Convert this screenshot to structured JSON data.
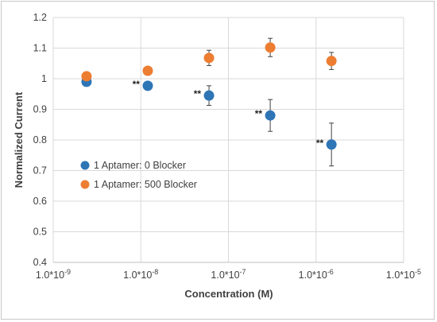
{
  "chart_data": {
    "type": "scatter",
    "xlabel": "Concentration (M)",
    "ylabel": "Normalized Current",
    "x_scale": "log",
    "xlim": [
      1e-09,
      1e-05
    ],
    "ylim": [
      0.4,
      1.2
    ],
    "grid": "on",
    "legend_position": "center-left",
    "x_ticks": [
      {
        "value": 1e-09,
        "label": "1.0*10",
        "exp": "-9"
      },
      {
        "value": 1e-08,
        "label": "1.0*10",
        "exp": "-8"
      },
      {
        "value": 1e-07,
        "label": "1.0*10",
        "exp": "-7"
      },
      {
        "value": 1e-06,
        "label": "1.0*10",
        "exp": "-6"
      },
      {
        "value": 1e-05,
        "label": "1.0*10",
        "exp": "-5"
      }
    ],
    "y_ticks": [
      "0.4",
      "0.5",
      "0.6",
      "0.7",
      "0.8",
      "0.9",
      "1",
      "1.1",
      "1.2"
    ],
    "series": [
      {
        "name": "1 Aptamer: 0 Blocker",
        "color": "#2e75b6",
        "points": [
          {
            "x": 2.4e-09,
            "y": 0.99,
            "err": 0
          },
          {
            "x": 1.2e-08,
            "y": 0.977,
            "err": 0
          },
          {
            "x": 6e-08,
            "y": 0.945,
            "err": 0.032
          },
          {
            "x": 3e-07,
            "y": 0.88,
            "err": 0.052
          },
          {
            "x": 1.5e-06,
            "y": 0.785,
            "err": 0.07
          }
        ]
      },
      {
        "name": "1 Aptamer: 500 Blocker",
        "color": "#ed7d31",
        "points": [
          {
            "x": 2.4e-09,
            "y": 1.008,
            "err": 0
          },
          {
            "x": 1.2e-08,
            "y": 1.026,
            "err": 0
          },
          {
            "x": 6e-08,
            "y": 1.068,
            "err": 0.025
          },
          {
            "x": 3e-07,
            "y": 1.102,
            "err": 0.03
          },
          {
            "x": 1.5e-06,
            "y": 1.058,
            "err": 0.028
          }
        ]
      }
    ],
    "annotations": [
      {
        "text": "**",
        "x": 1.2e-08,
        "y": 0.977
      },
      {
        "text": "**",
        "x": 6e-08,
        "y": 0.945
      },
      {
        "text": "**",
        "x": 3e-07,
        "y": 0.88
      },
      {
        "text": "**",
        "x": 1.5e-06,
        "y": 0.785
      }
    ]
  }
}
